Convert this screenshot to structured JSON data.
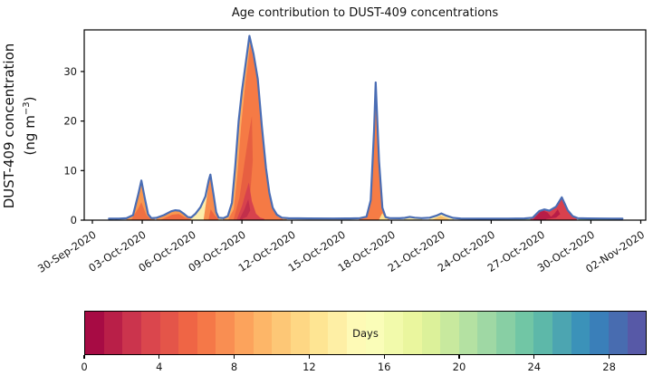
{
  "chart_data": {
    "type": "area",
    "title": "Age contribution to DUST-409 concentrations",
    "ylabel": {
      "line1": "DUST-409 concentration",
      "line2_pre": "(ng m",
      "line2_sup": "−3",
      "line2_post": ")"
    },
    "x_domain_days": [
      -0.49,
      33.3
    ],
    "y_domain": [
      0,
      38.4
    ],
    "y_ticks": [
      0,
      10,
      20,
      30
    ],
    "x_tick_days": [
      0,
      3,
      6,
      9,
      12,
      15,
      18,
      21,
      24,
      27,
      30,
      33
    ],
    "x_tick_labels": [
      "30-Sep-2020",
      "03-Oct-2020",
      "06-Oct-2020",
      "09-Oct-2020",
      "12-Oct-2020",
      "15-Oct-2020",
      "18-Oct-2020",
      "21-Oct-2020",
      "24-Oct-2020",
      "27-Oct-2020",
      "30-Oct-2020",
      "02-Nov-2020"
    ],
    "total_line_color": "#4a6db4",
    "total_series": [
      [
        1.0,
        0.3
      ],
      [
        1.6,
        0.32
      ],
      [
        2.05,
        0.38
      ],
      [
        2.45,
        1.0
      ],
      [
        2.75,
        5.0
      ],
      [
        2.95,
        8.0
      ],
      [
        3.15,
        4.5
      ],
      [
        3.35,
        1.2
      ],
      [
        3.55,
        0.4
      ],
      [
        3.85,
        0.45
      ],
      [
        4.3,
        1.0
      ],
      [
        4.75,
        1.8
      ],
      [
        5.0,
        2.0
      ],
      [
        5.25,
        1.9
      ],
      [
        5.5,
        1.3
      ],
      [
        5.75,
        0.6
      ],
      [
        5.95,
        0.55
      ],
      [
        6.2,
        1.3
      ],
      [
        6.5,
        2.6
      ],
      [
        6.8,
        4.8
      ],
      [
        7.0,
        8.0
      ],
      [
        7.1,
        9.2
      ],
      [
        7.3,
        5.0
      ],
      [
        7.45,
        1.6
      ],
      [
        7.6,
        0.5
      ],
      [
        7.9,
        0.4
      ],
      [
        8.15,
        0.8
      ],
      [
        8.4,
        3.5
      ],
      [
        8.6,
        11
      ],
      [
        8.8,
        20
      ],
      [
        9.0,
        26
      ],
      [
        9.2,
        31
      ],
      [
        9.45,
        37.2
      ],
      [
        9.7,
        33.5
      ],
      [
        9.95,
        28.5
      ],
      [
        10.2,
        19
      ],
      [
        10.45,
        10.5
      ],
      [
        10.65,
        5.5
      ],
      [
        10.85,
        2.5
      ],
      [
        11.1,
        1.1
      ],
      [
        11.4,
        0.5
      ],
      [
        11.8,
        0.38
      ],
      [
        13.0,
        0.35
      ],
      [
        14.5,
        0.33
      ],
      [
        15.5,
        0.35
      ],
      [
        16.1,
        0.4
      ],
      [
        16.5,
        0.7
      ],
      [
        16.75,
        4.0
      ],
      [
        16.95,
        18
      ],
      [
        17.05,
        27.8
      ],
      [
        17.25,
        12
      ],
      [
        17.45,
        2.5
      ],
      [
        17.65,
        0.6
      ],
      [
        17.9,
        0.4
      ],
      [
        18.5,
        0.38
      ],
      [
        18.8,
        0.45
      ],
      [
        19.1,
        0.65
      ],
      [
        19.4,
        0.5
      ],
      [
        19.8,
        0.4
      ],
      [
        20.3,
        0.5
      ],
      [
        20.7,
        0.9
      ],
      [
        21.0,
        1.35
      ],
      [
        21.3,
        0.9
      ],
      [
        21.7,
        0.45
      ],
      [
        22.2,
        0.32
      ],
      [
        23.5,
        0.3
      ],
      [
        25.0,
        0.32
      ],
      [
        26.0,
        0.35
      ],
      [
        26.5,
        0.5
      ],
      [
        26.9,
        1.85
      ],
      [
        27.2,
        2.15
      ],
      [
        27.5,
        1.9
      ],
      [
        27.9,
        2.7
      ],
      [
        28.25,
        4.6
      ],
      [
        28.6,
        2.0
      ],
      [
        28.9,
        0.8
      ],
      [
        29.2,
        0.4
      ],
      [
        29.8,
        0.35
      ],
      [
        30.5,
        0.33
      ],
      [
        31.3,
        0.32
      ],
      [
        31.9,
        0.3
      ]
    ],
    "layers": [
      {
        "name": "peak1-orange",
        "color": "#f9984f",
        "points": [
          [
            2.05,
            0.3
          ],
          [
            2.45,
            1.0
          ],
          [
            2.75,
            5.0
          ],
          [
            2.95,
            8.0
          ],
          [
            3.15,
            4.5
          ],
          [
            3.35,
            1.2
          ],
          [
            3.55,
            0.4
          ],
          [
            3.75,
            0.3
          ]
        ]
      },
      {
        "name": "peak1-core",
        "color": "#ef7042",
        "points": [
          [
            2.35,
            0.15
          ],
          [
            2.8,
            2.6
          ],
          [
            2.95,
            3.6
          ],
          [
            3.25,
            1.0
          ],
          [
            3.5,
            0.25
          ]
        ]
      },
      {
        "name": "bump-orange",
        "color": "#f9984f",
        "points": [
          [
            3.85,
            0.3
          ],
          [
            4.3,
            1.0
          ],
          [
            4.75,
            1.8
          ],
          [
            5.0,
            2.0
          ],
          [
            5.25,
            1.9
          ],
          [
            5.5,
            1.3
          ],
          [
            5.75,
            0.6
          ],
          [
            5.95,
            0.5
          ]
        ]
      },
      {
        "name": "bump-core",
        "color": "#ef6a41",
        "points": [
          [
            4.15,
            0.15
          ],
          [
            4.8,
            1.1
          ],
          [
            5.2,
            1.25
          ],
          [
            5.6,
            0.5
          ],
          [
            5.9,
            0.2
          ]
        ]
      },
      {
        "name": "peak2-cream",
        "color": "#fcecab",
        "points": [
          [
            5.95,
            0.45
          ],
          [
            6.2,
            1.3
          ],
          [
            6.5,
            2.6
          ],
          [
            6.8,
            4.8
          ],
          [
            7.0,
            8.0
          ],
          [
            7.1,
            9.2
          ],
          [
            7.3,
            5.0
          ],
          [
            7.45,
            1.6
          ],
          [
            7.6,
            0.5
          ],
          [
            7.8,
            0.38
          ]
        ]
      },
      {
        "name": "peak2-orange",
        "color": "#f78b4d",
        "points": [
          [
            6.7,
            0.2
          ],
          [
            7.0,
            7.2
          ],
          [
            7.1,
            8.9
          ],
          [
            7.3,
            4.8
          ],
          [
            7.45,
            1.5
          ],
          [
            7.6,
            0.45
          ]
        ]
      },
      {
        "name": "peak2-core",
        "color": "#ee6440",
        "points": [
          [
            7.0,
            0.15
          ],
          [
            7.12,
            2.2
          ],
          [
            7.35,
            1.0
          ],
          [
            7.55,
            0.3
          ]
        ]
      },
      {
        "name": "bigpeak-light",
        "color": "#fbab61",
        "points": [
          [
            7.85,
            0.35
          ],
          [
            8.15,
            0.8
          ],
          [
            8.4,
            3.5
          ],
          [
            8.6,
            11
          ],
          [
            8.8,
            20
          ],
          [
            9.0,
            26
          ],
          [
            9.2,
            31
          ],
          [
            9.45,
            37.2
          ],
          [
            9.7,
            33.5
          ],
          [
            9.95,
            28.5
          ],
          [
            10.2,
            19
          ],
          [
            10.45,
            10.5
          ],
          [
            10.65,
            5.5
          ],
          [
            10.85,
            2.5
          ],
          [
            11.1,
            1.1
          ],
          [
            11.4,
            0.5
          ],
          [
            11.7,
            0.38
          ]
        ]
      },
      {
        "name": "bigpeak-orange",
        "color": "#f57a45",
        "points": [
          [
            8.2,
            0.3
          ],
          [
            8.5,
            2.2
          ],
          [
            8.72,
            9
          ],
          [
            8.95,
            19
          ],
          [
            9.2,
            27.5
          ],
          [
            9.5,
            35.5
          ],
          [
            9.62,
            33.8
          ],
          [
            9.85,
            30
          ],
          [
            10.05,
            25
          ],
          [
            10.3,
            15.5
          ],
          [
            10.55,
            8
          ],
          [
            10.75,
            3.8
          ],
          [
            10.95,
            1.6
          ],
          [
            11.2,
            0.6
          ],
          [
            11.45,
            0.3
          ]
        ]
      },
      {
        "name": "bigpeak-dark",
        "color": "#e75f41",
        "points": [
          [
            8.5,
            0.2
          ],
          [
            8.85,
            4.5
          ],
          [
            9.15,
            11.5
          ],
          [
            9.42,
            17.5
          ],
          [
            9.6,
            21
          ],
          [
            9.65,
            12
          ],
          [
            9.5,
            5.5
          ],
          [
            9.25,
            1.8
          ],
          [
            8.95,
            0.4
          ]
        ]
      },
      {
        "name": "bigpeak-red",
        "color": "#d7424d",
        "points": [
          [
            8.7,
            0.2
          ],
          [
            9.0,
            2.8
          ],
          [
            9.25,
            5.8
          ],
          [
            9.42,
            7.6
          ],
          [
            9.6,
            3.8
          ],
          [
            9.85,
            1.3
          ],
          [
            10.1,
            0.5
          ],
          [
            10.35,
            0.25
          ]
        ]
      },
      {
        "name": "bigpeak-red-dark",
        "color": "#c22f4b",
        "points": [
          [
            8.85,
            0.15
          ],
          [
            9.15,
            2.2
          ],
          [
            9.38,
            4.2
          ],
          [
            9.5,
            2.0
          ],
          [
            9.3,
            0.7
          ],
          [
            9.05,
            0.3
          ]
        ]
      },
      {
        "name": "spike-orange",
        "color": "#f67c45",
        "points": [
          [
            16.05,
            0.35
          ],
          [
            16.5,
            0.7
          ],
          [
            16.75,
            4.0
          ],
          [
            16.95,
            18
          ],
          [
            17.05,
            27.3
          ],
          [
            17.25,
            12
          ],
          [
            17.45,
            2.5
          ],
          [
            17.65,
            0.6
          ],
          [
            17.85,
            0.4
          ]
        ]
      },
      {
        "name": "spike-cream",
        "color": "#fcdf8f",
        "points": [
          [
            17.25,
            0.15
          ],
          [
            17.45,
            1.4
          ],
          [
            17.6,
            0.5
          ],
          [
            17.8,
            0.3
          ]
        ]
      },
      {
        "name": "bump19-cream",
        "color": "#fae9a6",
        "points": [
          [
            18.75,
            0.28
          ],
          [
            19.1,
            0.6
          ],
          [
            19.45,
            0.45
          ],
          [
            19.85,
            0.32
          ]
        ]
      },
      {
        "name": "bump21-cream",
        "color": "#fae9a6",
        "points": [
          [
            20.25,
            0.35
          ],
          [
            20.7,
            0.85
          ],
          [
            21.0,
            1.3
          ],
          [
            21.3,
            0.85
          ],
          [
            21.75,
            0.38
          ]
        ]
      },
      {
        "name": "bump21-core",
        "color": "#f9bd67",
        "points": [
          [
            20.5,
            0.15
          ],
          [
            20.95,
            0.85
          ],
          [
            21.15,
            0.6
          ],
          [
            21.45,
            0.25
          ]
        ]
      },
      {
        "name": "flat-green-a",
        "color": "#b5dfad",
        "points": [
          [
            24.1,
            0.22
          ],
          [
            24.8,
            0.27
          ],
          [
            25.6,
            0.28
          ],
          [
            26.3,
            0.26
          ],
          [
            26.6,
            0.22
          ]
        ]
      },
      {
        "name": "redpeak-base",
        "color": "#d8414e",
        "points": [
          [
            26.35,
            0.25
          ],
          [
            26.9,
            1.85
          ],
          [
            27.2,
            2.15
          ],
          [
            27.5,
            1.9
          ],
          [
            27.9,
            2.7
          ],
          [
            28.25,
            4.6
          ],
          [
            28.6,
            2.0
          ],
          [
            28.9,
            0.8
          ],
          [
            29.15,
            0.38
          ]
        ]
      },
      {
        "name": "redpeak-dark",
        "color": "#b81d47",
        "points": [
          [
            26.55,
            0.2
          ],
          [
            26.95,
            1.65
          ],
          [
            27.15,
            1.9
          ],
          [
            27.4,
            1.5
          ],
          [
            27.6,
            0.7
          ],
          [
            27.8,
            1.3
          ],
          [
            28.0,
            2.2
          ],
          [
            28.15,
            1.2
          ],
          [
            27.9,
            0.5
          ],
          [
            27.3,
            0.2
          ]
        ]
      },
      {
        "name": "flat-green-b",
        "color": "#8fcfa6",
        "points": [
          [
            29.25,
            0.2
          ],
          [
            29.9,
            0.28
          ],
          [
            30.8,
            0.28
          ],
          [
            31.6,
            0.22
          ]
        ]
      }
    ],
    "colorbar": {
      "label": "Days",
      "range": [
        0,
        30
      ],
      "ticks": [
        0,
        4,
        8,
        12,
        16,
        20,
        24,
        28
      ],
      "colors": [
        "#a70b44",
        "#b91f48",
        "#cb344d",
        "#da464d",
        "#e45549",
        "#ef6545",
        "#f57848",
        "#f98e52",
        "#fca35c",
        "#fdb668",
        "#fdc776",
        "#fed784",
        "#fee593",
        "#feefa5",
        "#fefab6",
        "#fafdb8",
        "#f2faab",
        "#eaf69e",
        "#dcf19a",
        "#c8e99e",
        "#b4e1a2",
        "#9fd8a4",
        "#88cfa4",
        "#71c6a5",
        "#5db8a9",
        "#4ca5b1",
        "#3b92b9",
        "#3a7fb9",
        "#486cb0",
        "#5759a7"
      ]
    }
  }
}
